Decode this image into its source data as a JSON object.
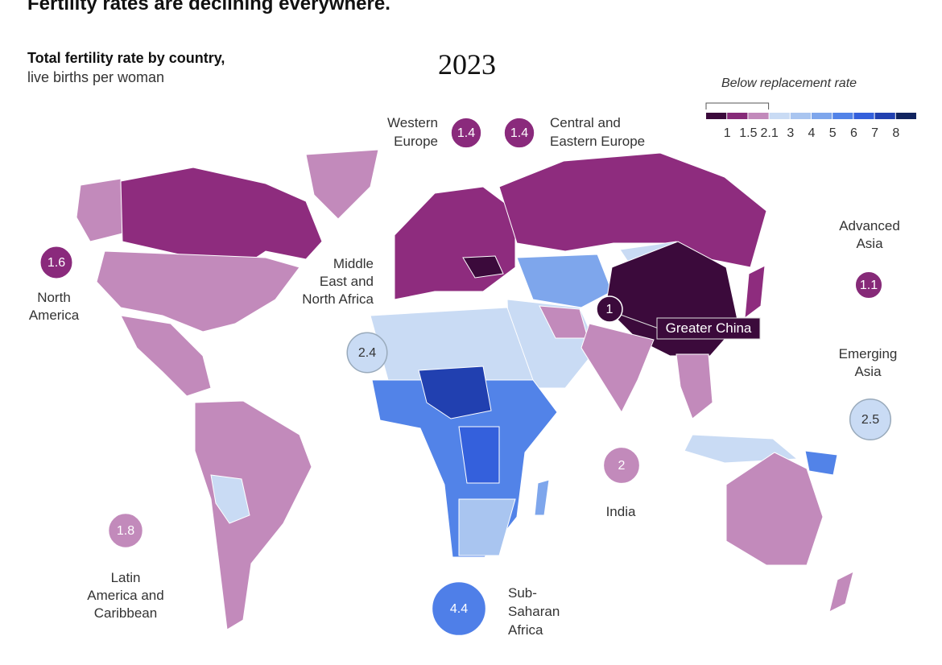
{
  "header": {
    "title": "Fertility rates are declining everywhere.",
    "subtitle": "Total fertility rate by country,",
    "subtitle_note": "live births per woman",
    "year": "2023"
  },
  "legend": {
    "title": "Below replacement rate",
    "ticks": [
      1,
      1.5,
      2.1,
      3,
      4,
      5,
      6,
      7,
      8
    ],
    "colors": [
      "#3b0a3b",
      "#862a78",
      "#c28abb",
      "#c9dbf4",
      "#a9c5f0",
      "#7ea6ec",
      "#5283e8",
      "#3460dc",
      "#2140b0",
      "#11245f"
    ]
  },
  "regions": [
    {
      "label": [
        "Western",
        "Europe"
      ],
      "value": 1.4,
      "color": "#8a2a7c"
    },
    {
      "label": [
        "Central and",
        "Eastern Europe"
      ],
      "value": 1.4,
      "color": "#8a2a7c"
    },
    {
      "label": [
        "North",
        "America"
      ],
      "value": 1.6,
      "color": "#8a2a7c"
    },
    {
      "label": [
        "Middle",
        "East and",
        "North Africa"
      ],
      "value": 2.4,
      "color": "#c9dbf4"
    },
    {
      "label": [
        "Greater China"
      ],
      "value": 1.0,
      "color": "#3b0a3b"
    },
    {
      "label": [
        "Advanced",
        "Asia"
      ],
      "value": 1.1,
      "color": "#862a78"
    },
    {
      "label": [
        "Emerging",
        "Asia"
      ],
      "value": 2.5,
      "color": "#c9dbf4"
    },
    {
      "label": [
        "India"
      ],
      "value": 2.0,
      "color": "#c28abb"
    },
    {
      "label": [
        "Latin",
        "America and",
        "Caribbean"
      ],
      "value": 1.8,
      "color": "#c28abb"
    },
    {
      "label": [
        "Sub-",
        "Saharan",
        "Africa"
      ],
      "value": 4.4,
      "color": "#4f7fe8"
    }
  ]
}
